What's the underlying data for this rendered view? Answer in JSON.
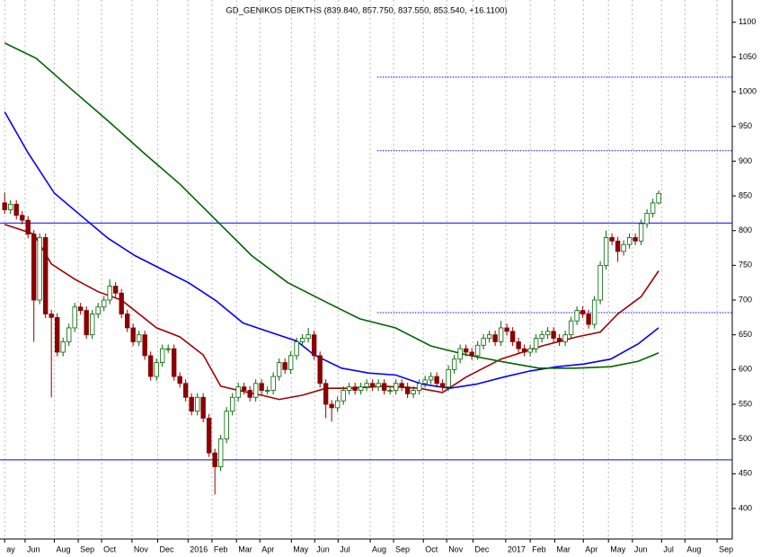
{
  "chart_data": {
    "type": "candlestick",
    "title": "GD_GENIKOS DEIKTHS (839.840, 857.750, 837.550, 853.540, +16.1100)",
    "ylim": [
      356,
      1132
    ],
    "yticks": [
      400,
      450,
      500,
      550,
      600,
      650,
      700,
      750,
      800,
      850,
      900,
      950,
      1000,
      1050,
      1100
    ],
    "xlim": [
      -0.8,
      124.6
    ],
    "xticks": [
      {
        "value": 0,
        "label": "ay"
      },
      {
        "value": 3.5,
        "label": "Jun"
      },
      {
        "value": 8.5,
        "label": "Aug"
      },
      {
        "value": 12.6,
        "label": "Sep"
      },
      {
        "value": 16.6,
        "label": "Oct"
      },
      {
        "value": 21.8,
        "label": "Nov"
      },
      {
        "value": 26.2,
        "label": "Dec"
      },
      {
        "value": 31.4,
        "label": "2016"
      },
      {
        "value": 35.5,
        "label": "Feb"
      },
      {
        "value": 39.7,
        "label": "Mar"
      },
      {
        "value": 43.7,
        "label": "Apr"
      },
      {
        "value": 49.1,
        "label": "May"
      },
      {
        "value": 53.1,
        "label": "Jun"
      },
      {
        "value": 57.1,
        "label": "Jul"
      },
      {
        "value": 62.6,
        "label": "Aug"
      },
      {
        "value": 66.6,
        "label": "Sep"
      },
      {
        "value": 71.7,
        "label": "Oct"
      },
      {
        "value": 75.7,
        "label": "Nov"
      },
      {
        "value": 80.2,
        "label": "Dec"
      },
      {
        "value": 85.8,
        "label": "2017"
      },
      {
        "value": 90,
        "label": "Feb"
      },
      {
        "value": 94.2,
        "label": "Mar"
      },
      {
        "value": 99.1,
        "label": "Apr"
      },
      {
        "value": 103.4,
        "label": "May"
      },
      {
        "value": 107.5,
        "label": "Jun"
      },
      {
        "value": 112.5,
        "label": "Jul"
      },
      {
        "value": 116.5,
        "label": "Aug"
      },
      {
        "value": 122,
        "label": "Sep"
      }
    ],
    "grid": true,
    "up_color": "#006400",
    "down_color": "#8b0000",
    "open": [
      840,
      830,
      838,
      822,
      815,
      795,
      700,
      790,
      680,
      675,
      625,
      640,
      660,
      690,
      685,
      650,
      680,
      690,
      700,
      720,
      710,
      680,
      660,
      640,
      650,
      620,
      590,
      610,
      630,
      630,
      590,
      580,
      560,
      540,
      560,
      530,
      480,
      460,
      500,
      540,
      560,
      575,
      570,
      560,
      580,
      570,
      570,
      590,
      610,
      600,
      620,
      640,
      645,
      650,
      620,
      580,
      550,
      545,
      555,
      570,
      575,
      570,
      575,
      580,
      575,
      580,
      570,
      570,
      580,
      575,
      565,
      570,
      580,
      585,
      590,
      580,
      575,
      600,
      615,
      630,
      625,
      620,
      635,
      645,
      650,
      640,
      660,
      655,
      640,
      630,
      625,
      630,
      645,
      650,
      655,
      645,
      640,
      650,
      670,
      685,
      680,
      665,
      700,
      750,
      790,
      785,
      770,
      780,
      790,
      785,
      810,
      825,
      839.84
    ],
    "high": [
      855,
      844,
      844,
      828,
      821,
      801,
      796,
      796,
      686,
      681,
      646,
      666,
      696,
      696,
      691,
      686,
      696,
      706,
      730,
      726,
      716,
      686,
      666,
      656,
      656,
      626,
      616,
      636,
      636,
      636,
      596,
      586,
      566,
      566,
      566,
      536,
      486,
      506,
      546,
      566,
      581,
      581,
      576,
      586,
      586,
      576,
      596,
      616,
      616,
      626,
      646,
      651,
      660,
      656,
      626,
      586,
      556,
      561,
      576,
      581,
      581,
      581,
      586,
      586,
      586,
      586,
      576,
      586,
      586,
      581,
      576,
      586,
      591,
      596,
      596,
      586,
      606,
      621,
      636,
      636,
      631,
      641,
      651,
      656,
      656,
      670,
      666,
      661,
      646,
      636,
      636,
      651,
      656,
      661,
      661,
      651,
      656,
      676,
      691,
      691,
      686,
      706,
      756,
      800,
      796,
      791,
      786,
      796,
      796,
      816,
      831,
      846,
      857.75
    ],
    "low": [
      824,
      824,
      816,
      809,
      789,
      640,
      694,
      674,
      560,
      619,
      619,
      634,
      654,
      679,
      644,
      644,
      674,
      684,
      694,
      704,
      674,
      654,
      634,
      634,
      614,
      584,
      584,
      604,
      624,
      584,
      574,
      554,
      534,
      534,
      524,
      474,
      420,
      454,
      494,
      534,
      554,
      564,
      554,
      554,
      564,
      564,
      564,
      584,
      594,
      594,
      614,
      634,
      639,
      614,
      574,
      530,
      525,
      539,
      549,
      564,
      564,
      564,
      569,
      569,
      569,
      564,
      564,
      564,
      569,
      559,
      559,
      564,
      574,
      579,
      574,
      569,
      569,
      594,
      609,
      619,
      614,
      614,
      629,
      639,
      634,
      634,
      649,
      634,
      624,
      619,
      619,
      624,
      639,
      644,
      639,
      634,
      634,
      644,
      664,
      674,
      659,
      659,
      694,
      744,
      779,
      755,
      764,
      774,
      779,
      779,
      804,
      819,
      837.55
    ],
    "close": [
      830,
      838,
      822,
      815,
      795,
      700,
      790,
      680,
      675,
      625,
      640,
      660,
      690,
      685,
      650,
      680,
      690,
      700,
      720,
      710,
      680,
      660,
      640,
      650,
      620,
      590,
      610,
      630,
      630,
      590,
      580,
      560,
      540,
      560,
      530,
      480,
      460,
      500,
      540,
      560,
      575,
      570,
      560,
      580,
      570,
      570,
      590,
      610,
      600,
      620,
      640,
      645,
      650,
      620,
      580,
      550,
      545,
      555,
      570,
      575,
      570,
      575,
      580,
      575,
      580,
      570,
      570,
      580,
      575,
      565,
      570,
      580,
      585,
      590,
      580,
      575,
      600,
      615,
      630,
      625,
      620,
      635,
      645,
      650,
      640,
      660,
      655,
      640,
      630,
      625,
      630,
      645,
      650,
      655,
      645,
      640,
      650,
      670,
      685,
      680,
      665,
      700,
      750,
      790,
      785,
      770,
      780,
      790,
      785,
      810,
      825,
      839.84,
      853.54
    ],
    "lines": [
      {
        "color": "#a00000",
        "x": [
          0,
          5,
          8,
          12,
          16,
          20,
          26,
          30,
          34,
          37,
          40,
          44,
          47,
          51,
          55,
          59,
          65,
          71,
          75,
          79,
          85,
          92,
          98,
          102,
          105,
          109,
          112
        ],
        "values": [
          809,
          795,
          752,
          730,
          712,
          700,
          660,
          647,
          621,
          576,
          570,
          563,
          557,
          563,
          573,
          573,
          576,
          573,
          567,
          589,
          615,
          634,
          647,
          654,
          680,
          705,
          742
        ]
      },
      {
        "color": "#0000ff",
        "x": [
          0,
          4,
          8.5,
          13,
          17.7,
          22.3,
          27,
          31.5,
          36.2,
          40.8,
          45.4,
          50,
          53,
          57.7,
          62.3,
          67,
          71.5,
          76.2,
          80.8,
          85.4,
          90,
          94.6,
          99.2,
          103.8,
          108.5,
          112
        ],
        "values": [
          971,
          912,
          854,
          822,
          789,
          764,
          744,
          725,
          699,
          667,
          654,
          641,
          621,
          602,
          595,
          592,
          579,
          573,
          579,
          589,
          598,
          604,
          608,
          615,
          637,
          660
        ]
      },
      {
        "color": "#006400",
        "x": [
          0,
          5.4,
          11.5,
          17.7,
          23.8,
          30,
          36.2,
          42.3,
          48.5,
          54.6,
          60.8,
          66.9,
          73,
          79.2,
          85.4,
          91.5,
          97.7,
          103.8,
          108.5,
          112
        ],
        "values": [
          1070,
          1048,
          1003,
          958,
          912,
          867,
          815,
          764,
          725,
          699,
          673,
          660,
          634,
          621,
          611,
          602,
          602,
          604,
          612,
          624
        ]
      }
    ],
    "hlines": [
      {
        "value": 811,
        "color": "#0000ff",
        "style": "solid",
        "from": -0.8
      },
      {
        "value": 470,
        "color": "#0000ff",
        "style": "solid",
        "from": -0.8
      },
      {
        "value": 1021,
        "color": "#0000ff",
        "style": "dotted",
        "from": 63.8
      },
      {
        "value": 915,
        "color": "#0000ff",
        "style": "dotted",
        "from": 63.8
      },
      {
        "value": 682,
        "color": "#0000ff",
        "style": "dotted",
        "from": 63.8
      }
    ]
  }
}
